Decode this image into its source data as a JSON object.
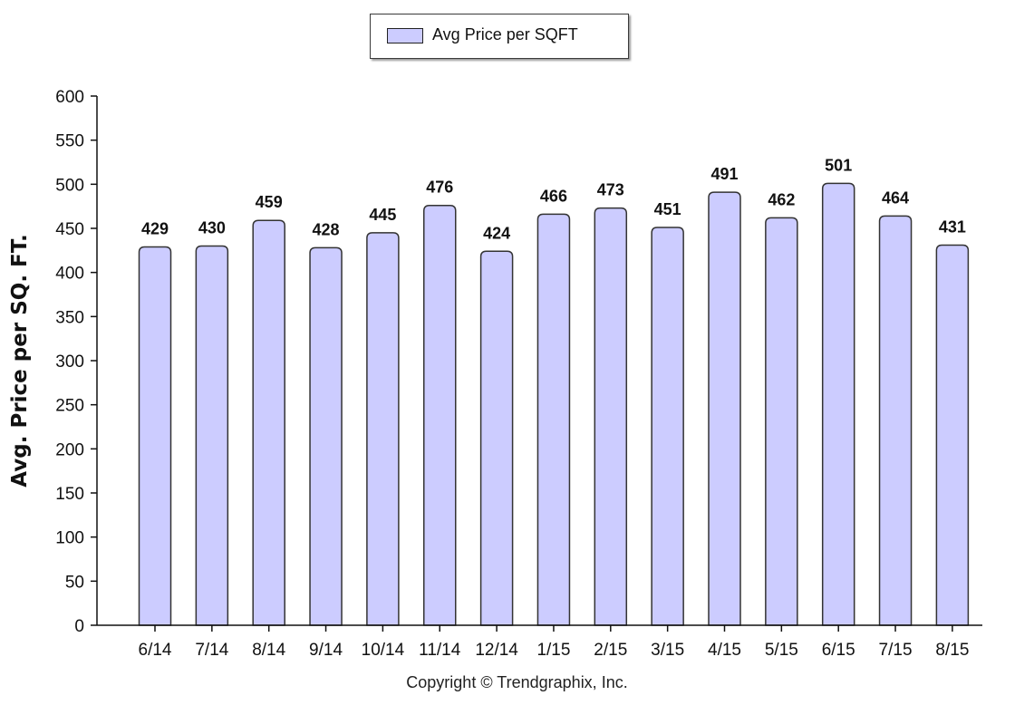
{
  "legend": {
    "label": "Avg Price per SQFT",
    "swatch_color": "#ccccff"
  },
  "copyright": {
    "prefix": "Copyright",
    "symbol": "©",
    "suffix": "Trendgraphix, Inc."
  },
  "chart_data": {
    "type": "bar",
    "title": "",
    "xlabel": "",
    "ylabel": "Avg. Price per SQ. FT.",
    "ylim": [
      0,
      600
    ],
    "yticks": [
      0,
      50,
      100,
      150,
      200,
      250,
      300,
      350,
      400,
      450,
      500,
      550,
      600
    ],
    "grid": false,
    "legend_position": "top-center",
    "bar_color": "#ccccff",
    "bar_outline_color": "#333333",
    "categories": [
      "6/14",
      "7/14",
      "8/14",
      "9/14",
      "10/14",
      "11/14",
      "12/14",
      "1/15",
      "2/15",
      "3/15",
      "4/15",
      "5/15",
      "6/15",
      "7/15",
      "8/15"
    ],
    "series": [
      {
        "name": "Avg Price per SQFT",
        "values": [
          429,
          430,
          459,
          428,
          445,
          476,
          424,
          466,
          473,
          451,
          491,
          462,
          501,
          464,
          431
        ]
      }
    ]
  }
}
